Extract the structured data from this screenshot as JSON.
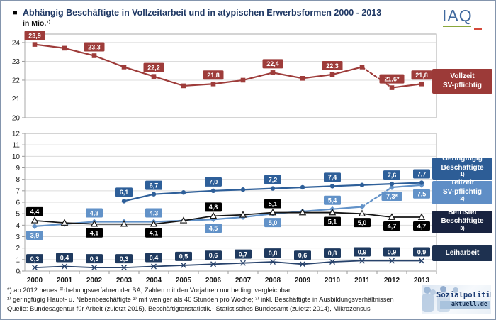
{
  "header": {
    "bullet": "■",
    "title": "Abhängig Beschäftigte in Vollzeitarbeit und in atypischen Erwerbsformen 2000 - 2013",
    "subtitle": "in Mio.¹⁾"
  },
  "logo_iaq": {
    "text": "IAQ"
  },
  "chart_data": {
    "type": "line",
    "title": "Abhängig Beschäftigte in Vollzeitarbeit und in atypischen Erwerbsformen 2000 - 2013",
    "ylabel": "in Mio.",
    "grid": true,
    "x": [
      2000,
      2001,
      2002,
      2003,
      2004,
      2005,
      2006,
      2007,
      2008,
      2009,
      2010,
      2011,
      2012,
      2013
    ],
    "panels": [
      {
        "name": "top",
        "ylim": [
          20,
          24.45
        ],
        "yticks": [
          20,
          21,
          22,
          23,
          24
        ]
      },
      {
        "name": "bottom",
        "ylim": [
          0,
          12
        ],
        "yticks": [
          0,
          1,
          2,
          3,
          4,
          5,
          6,
          7,
          8,
          9,
          10,
          11,
          12
        ]
      }
    ],
    "series": [
      {
        "name": "Vollzeit SV-pflichtig",
        "panel": "top",
        "color": "#9e3c3a",
        "marker": "square",
        "line_width": 2.2,
        "dashed_after": 2011,
        "values": [
          23.9,
          23.7,
          23.3,
          22.7,
          22.2,
          21.7,
          21.8,
          22.0,
          22.4,
          22.1,
          22.3,
          22.7,
          21.6,
          21.8
        ],
        "labels": [
          "23,9",
          null,
          "23,3",
          null,
          "22,2",
          null,
          "21,8",
          null,
          "22,4",
          null,
          "22,3",
          null,
          "21,6*",
          "21,8"
        ],
        "label_pos": null
      },
      {
        "name": "Teilzeit SV-pflichtig",
        "panel": "bottom",
        "color": "#6292c8",
        "marker": "diamond",
        "line_width": 2.2,
        "dashed_after": 2011,
        "values": [
          3.9,
          4.1,
          4.3,
          4.3,
          4.3,
          4.4,
          4.5,
          4.7,
          5.0,
          5.2,
          5.4,
          5.6,
          7.3,
          7.5
        ],
        "labels": [
          "3,9",
          null,
          "4,3",
          null,
          "4,3",
          null,
          "4,5",
          null,
          "5,0",
          null,
          "5,4",
          null,
          "7,3*",
          "7,5"
        ],
        "label_pos": [
          "b",
          null,
          "a",
          null,
          "a",
          null,
          "b",
          null,
          "b",
          null,
          "a",
          null,
          "b",
          "b"
        ]
      },
      {
        "name": "Geringfügig Beschäftigte",
        "panel": "bottom",
        "color": "#2e5f99",
        "marker": "circle",
        "line_width": 2.2,
        "dashed_after": null,
        "values": [
          null,
          null,
          null,
          6.1,
          6.7,
          6.85,
          7.0,
          7.1,
          7.2,
          7.3,
          7.4,
          7.5,
          7.6,
          7.7
        ],
        "labels": [
          null,
          null,
          null,
          "6,1",
          "6,7",
          null,
          "7,0",
          null,
          "7,2",
          null,
          "7,4",
          null,
          "7,6",
          "7,7"
        ],
        "label_pos": null
      },
      {
        "name": "Befristet Beschäftigte",
        "panel": "bottom",
        "color": "#141414",
        "chip_color": "#000000",
        "marker": "triangle-open",
        "line_width": 1.8,
        "dashed_after": null,
        "values": [
          4.4,
          4.2,
          4.1,
          4.1,
          4.1,
          4.4,
          4.8,
          4.9,
          5.1,
          5.1,
          5.1,
          5.0,
          4.7,
          4.7
        ],
        "labels": [
          "4,4",
          null,
          "4,1",
          null,
          "4,1",
          null,
          "4,8",
          null,
          "5,1",
          null,
          "5,1",
          "5,0",
          "4,7",
          "4,7"
        ],
        "label_pos": [
          "a",
          null,
          "b",
          null,
          "b",
          null,
          "a",
          null,
          "a",
          null,
          "b",
          "b",
          "b",
          "b"
        ]
      },
      {
        "name": "Leiharbeit",
        "panel": "bottom",
        "color": "#27426b",
        "chip_color": "#1f3a5f",
        "marker": "x",
        "line_width": 1.8,
        "dashed_after": null,
        "values": [
          0.3,
          0.4,
          0.3,
          0.3,
          0.4,
          0.5,
          0.6,
          0.7,
          0.8,
          0.6,
          0.8,
          0.9,
          0.9,
          0.9
        ],
        "labels": [
          "0,3",
          "0,4",
          "0,3",
          "0,3",
          "0,4",
          "0,5",
          "0,6",
          "0,7",
          "0,8",
          "0,6",
          "0,8",
          "0,9",
          "0,9",
          "0,9"
        ],
        "label_pos": null
      }
    ]
  },
  "legend": {
    "items": [
      {
        "line1": "Vollzeit",
        "line2": "SV-pflichtig",
        "sup": "",
        "box_color": "#9c3a38"
      },
      {
        "line1": "Geringfügig",
        "line2": "Beschäftigte",
        "sup": "1)",
        "box_color": "#2d5d96"
      },
      {
        "line1": "Teilzeit",
        "line2": "SV-pflichtig",
        "sup": "2)",
        "box_color": "#5f8ec6"
      },
      {
        "line1": "Befristet",
        "line2": "Beschäftigte",
        "sup": "3)",
        "box_color": "#182340"
      },
      {
        "line1": "Leiharbeit",
        "line2": "",
        "sup": "",
        "box_color": "#1e3150"
      }
    ]
  },
  "footnotes": {
    "line1": "*) ab 2012 neues Erhebungsverfahren der BA,  Zahlen mit den Vorjahren nur bedingt vergleichbar",
    "line2": "¹⁾ geringfügig Haupt- u. Nebenbeschäftigte ²⁾ mit weniger als 40 Stunden pro Woche;  ³⁾ inkl. Beschäftigte in Ausbildungsverhältnissen",
    "line3": "Quelle:  Bundesagentur für Arbeit (zuletzt 2015), Beschäftigtenstatistik.- Statistisches Bundesamt (zuletzt 2014), Mikrozensus"
  },
  "logo_spa": {
    "line1": "Sozialpolitik-",
    "line2": "aktuell.de"
  }
}
